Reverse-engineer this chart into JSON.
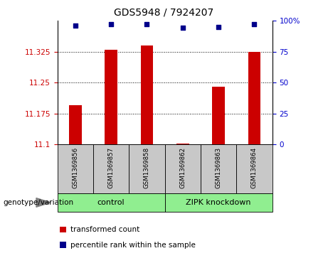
{
  "title": "GDS5948 / 7924207",
  "samples": [
    "GSM1369856",
    "GSM1369857",
    "GSM1369858",
    "GSM1369862",
    "GSM1369863",
    "GSM1369864"
  ],
  "red_values": [
    11.195,
    11.33,
    11.34,
    11.103,
    11.24,
    11.325
  ],
  "blue_values": [
    96,
    97,
    97,
    94,
    95,
    97
  ],
  "ylim_left": [
    11.1,
    11.4
  ],
  "ylim_right": [
    0,
    100
  ],
  "yticks_left": [
    11.1,
    11.175,
    11.25,
    11.325
  ],
  "yticks_right": [
    0,
    25,
    50,
    75,
    100
  ],
  "ytick_labels_left": [
    "11.1",
    "11.175",
    "11.25",
    "11.325"
  ],
  "ytick_labels_right": [
    "0",
    "25",
    "50",
    "75",
    "100%"
  ],
  "group_label_prefix": "genotype/variation",
  "legend_red": "transformed count",
  "legend_blue": "percentile rank within the sample",
  "red_color": "#CC0000",
  "blue_color": "#00008B",
  "bar_width": 0.35,
  "bg_sample_boxes": "#C8C8C8",
  "group_box_color": "#90EE90",
  "left_tick_color": "#CC0000",
  "right_tick_color": "#0000CC",
  "group_configs": [
    {
      "xstart": -0.5,
      "xend": 2.5,
      "label": "control"
    },
    {
      "xstart": 2.5,
      "xend": 5.5,
      "label": "ZIPK knockdown"
    }
  ]
}
